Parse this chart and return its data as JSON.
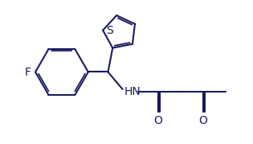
{
  "background_color": "#ffffff",
  "line_color": "#1a1a5e",
  "line_width": 1.5,
  "dbo": 0.07,
  "figsize": [
    3.15,
    1.79
  ],
  "dpi": 100,
  "xlim": [
    0,
    9.5
  ],
  "ylim": [
    0,
    5.4
  ]
}
